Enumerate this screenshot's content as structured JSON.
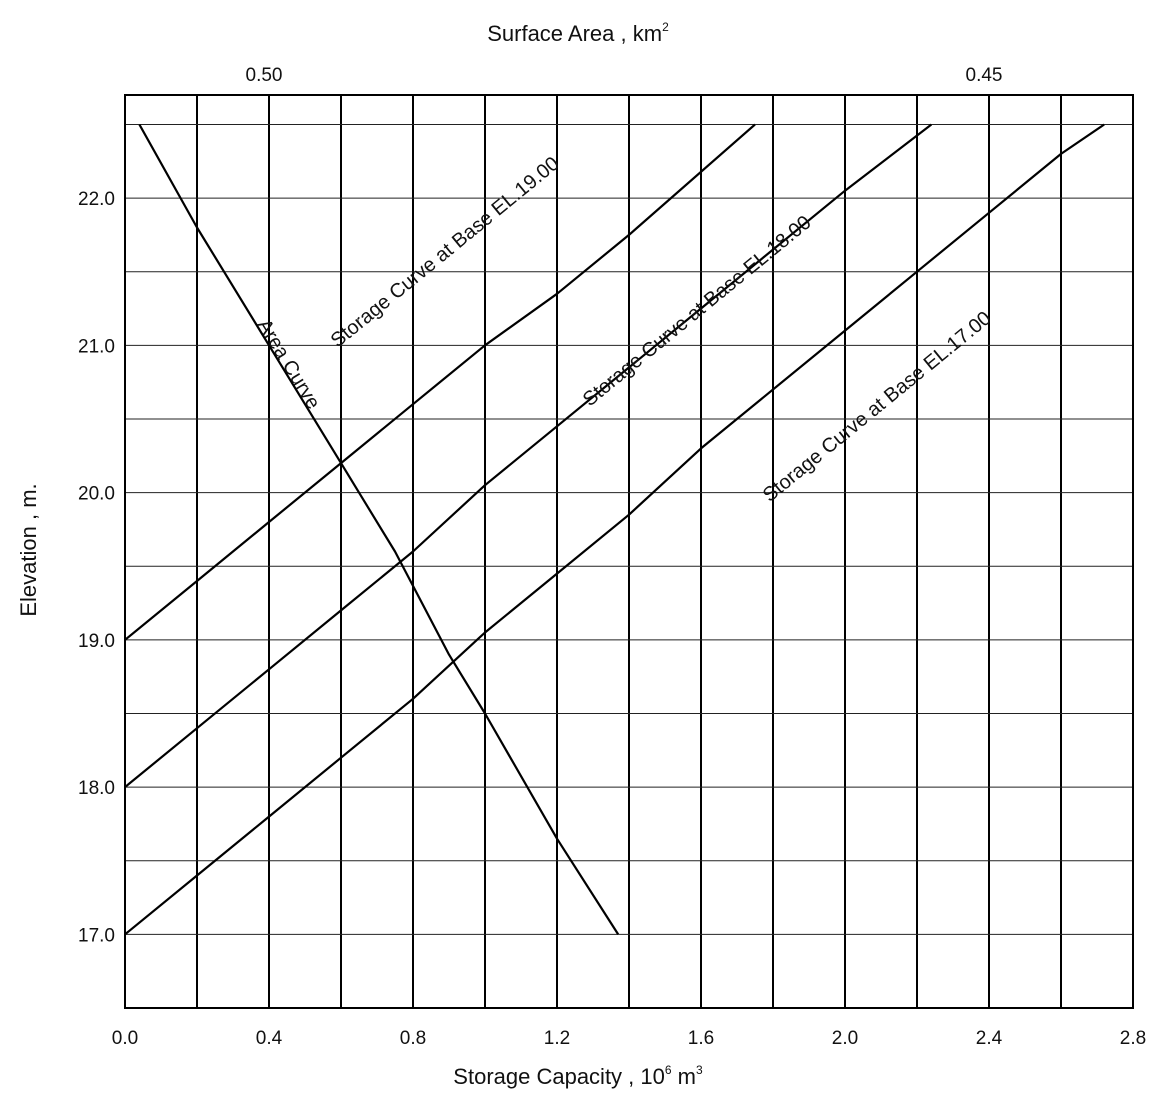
{
  "chart_data": {
    "type": "line",
    "title": "",
    "top_axis": {
      "label": "Surface Area , km",
      "label_sup": "2",
      "ticks": [
        {
          "value": 0.5,
          "label": "0.50",
          "x_at_storage": 0.4
        },
        {
          "value": 0.45,
          "label": "0.45",
          "x_at_storage": 2.4
        }
      ]
    },
    "xlabel": "Storage Capacity , 10",
    "xlabel_sup1": "6",
    "xlabel_mid": " m",
    "xlabel_sup2": "3",
    "ylabel": "Elevation , m.",
    "xlim": [
      0.0,
      2.8
    ],
    "ylim": [
      16.5,
      22.7
    ],
    "x_ticks": [
      {
        "value": 0.0,
        "label": "0.0"
      },
      {
        "value": 0.4,
        "label": "0.4"
      },
      {
        "value": 0.8,
        "label": "0.8"
      },
      {
        "value": 1.2,
        "label": "1.2"
      },
      {
        "value": 1.6,
        "label": "1.6"
      },
      {
        "value": 2.0,
        "label": "2.0"
      },
      {
        "value": 2.4,
        "label": "2.4"
      },
      {
        "value": 2.8,
        "label": "2.8"
      }
    ],
    "y_ticks": [
      {
        "value": 17.0,
        "label": "17.0"
      },
      {
        "value": 18.0,
        "label": "18.0"
      },
      {
        "value": 19.0,
        "label": "19.0"
      },
      {
        "value": 20.0,
        "label": "20.0"
      },
      {
        "value": 21.0,
        "label": "21.0"
      },
      {
        "value": 22.0,
        "label": "22.0"
      }
    ],
    "grid": true,
    "series": [
      {
        "name": "Area Curve",
        "label": "Area Curve",
        "label_at": {
          "x": 0.44,
          "y": 20.85
        },
        "points": [
          [
            0.04,
            22.5
          ],
          [
            0.2,
            21.8
          ],
          [
            0.4,
            21.0
          ],
          [
            0.6,
            20.2
          ],
          [
            0.75,
            19.6
          ],
          [
            0.9,
            18.9
          ],
          [
            1.0,
            18.5
          ],
          [
            1.2,
            17.65
          ],
          [
            1.37,
            17.0
          ]
        ]
      },
      {
        "name": "Storage Curve at Base EL.19.00",
        "label": "Storage Curve at Base EL.19.00",
        "label_at": {
          "x": 0.9,
          "y": 21.6
        },
        "points": [
          [
            0.0,
            19.0
          ],
          [
            0.2,
            19.4
          ],
          [
            0.4,
            19.8
          ],
          [
            0.6,
            20.2
          ],
          [
            0.8,
            20.6
          ],
          [
            1.0,
            21.0
          ],
          [
            1.2,
            21.35
          ],
          [
            1.4,
            21.75
          ],
          [
            1.75,
            22.5
          ]
        ]
      },
      {
        "name": "Storage Curve at Base EL.18.00",
        "label": "Storage Curve at Base EL.18.00",
        "label_at": {
          "x": 1.6,
          "y": 21.2
        },
        "points": [
          [
            0.0,
            18.0
          ],
          [
            0.2,
            18.4
          ],
          [
            0.4,
            18.8
          ],
          [
            0.6,
            19.2
          ],
          [
            0.8,
            19.6
          ],
          [
            1.0,
            20.05
          ],
          [
            1.2,
            20.45
          ],
          [
            1.6,
            21.25
          ],
          [
            2.0,
            22.05
          ],
          [
            2.24,
            22.5
          ]
        ]
      },
      {
        "name": "Storage Curve at Base EL.17.00",
        "label": "Storage Curve at Base EL.17.00",
        "label_at": {
          "x": 2.1,
          "y": 20.55
        },
        "points": [
          [
            0.0,
            17.0
          ],
          [
            0.2,
            17.4
          ],
          [
            0.4,
            17.8
          ],
          [
            0.6,
            18.2
          ],
          [
            0.8,
            18.6
          ],
          [
            1.0,
            19.05
          ],
          [
            1.2,
            19.45
          ],
          [
            1.4,
            19.85
          ],
          [
            1.6,
            20.3
          ],
          [
            2.0,
            21.1
          ],
          [
            2.2,
            21.5
          ],
          [
            2.4,
            21.9
          ],
          [
            2.6,
            22.3
          ],
          [
            2.72,
            22.5
          ]
        ]
      }
    ]
  }
}
